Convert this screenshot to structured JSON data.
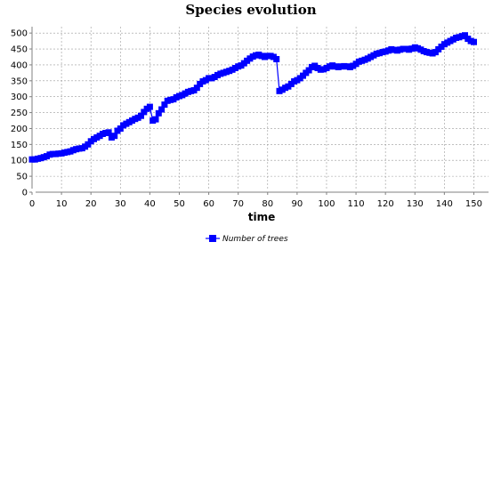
{
  "chart_data": {
    "type": "line",
    "title": "Species evolution",
    "xlabel": "time",
    "ylabel": "",
    "xlim": [
      0,
      155
    ],
    "ylim": [
      0,
      520
    ],
    "x_ticks": [
      0,
      10,
      20,
      30,
      40,
      50,
      60,
      70,
      80,
      90,
      100,
      110,
      120,
      130,
      140,
      150
    ],
    "y_ticks": [
      0,
      50,
      100,
      150,
      200,
      250,
      300,
      350,
      400,
      450,
      500
    ],
    "grid": true,
    "legend_position": "bottom",
    "series": [
      {
        "name": "Number of trees",
        "color": "#0000ff",
        "marker": "square",
        "x": [
          0,
          1,
          2,
          3,
          4,
          5,
          6,
          7,
          8,
          9,
          10,
          11,
          12,
          13,
          14,
          15,
          16,
          17,
          18,
          19,
          20,
          21,
          22,
          23,
          24,
          25,
          26,
          27,
          28,
          29,
          30,
          31,
          32,
          33,
          34,
          35,
          36,
          37,
          38,
          39,
          40,
          41,
          42,
          43,
          44,
          45,
          46,
          47,
          48,
          49,
          50,
          51,
          52,
          53,
          54,
          55,
          56,
          57,
          58,
          59,
          60,
          61,
          62,
          63,
          64,
          65,
          66,
          67,
          68,
          69,
          70,
          71,
          72,
          73,
          74,
          75,
          76,
          77,
          78,
          79,
          80,
          81,
          82,
          83,
          84,
          85,
          86,
          87,
          88,
          89,
          90,
          91,
          92,
          93,
          94,
          95,
          96,
          97,
          98,
          99,
          100,
          101,
          102,
          103,
          104,
          105,
          106,
          107,
          108,
          109,
          110,
          111,
          112,
          113,
          114,
          115,
          116,
          117,
          118,
          119,
          120,
          121,
          122,
          123,
          124,
          125,
          126,
          127,
          128,
          129,
          130,
          131,
          132,
          133,
          134,
          135,
          136,
          137,
          138,
          139,
          140,
          141,
          142,
          143,
          144,
          145,
          146,
          147,
          148,
          149,
          150
        ],
        "y": [
          103,
          103,
          105,
          107,
          110,
          113,
          118,
          120,
          120,
          121,
          122,
          124,
          126,
          128,
          132,
          135,
          137,
          138,
          143,
          150,
          160,
          167,
          172,
          177,
          183,
          186,
          188,
          172,
          177,
          193,
          200,
          210,
          215,
          220,
          225,
          230,
          234,
          240,
          252,
          262,
          268,
          225,
          229,
          248,
          260,
          275,
          287,
          290,
          292,
          298,
          302,
          305,
          310,
          315,
          318,
          320,
          328,
          340,
          348,
          352,
          358,
          358,
          362,
          368,
          372,
          375,
          378,
          381,
          385,
          390,
          395,
          398,
          405,
          413,
          420,
          426,
          430,
          432,
          428,
          425,
          428,
          428,
          425,
          418,
          318,
          322,
          328,
          332,
          340,
          348,
          352,
          358,
          366,
          375,
          383,
          393,
          397,
          390,
          385,
          386,
          390,
          395,
          398,
          395,
          393,
          395,
          396,
          395,
          393,
          397,
          403,
          410,
          413,
          416,
          420,
          425,
          430,
          435,
          437,
          440,
          442,
          445,
          449,
          447,
          445,
          448,
          450,
          450,
          448,
          451,
          455,
          452,
          448,
          443,
          440,
          438,
          436,
          440,
          449,
          457,
          465,
          470,
          475,
          480,
          485,
          487,
          490,
          493,
          482,
          475,
          472
        ]
      }
    ]
  }
}
